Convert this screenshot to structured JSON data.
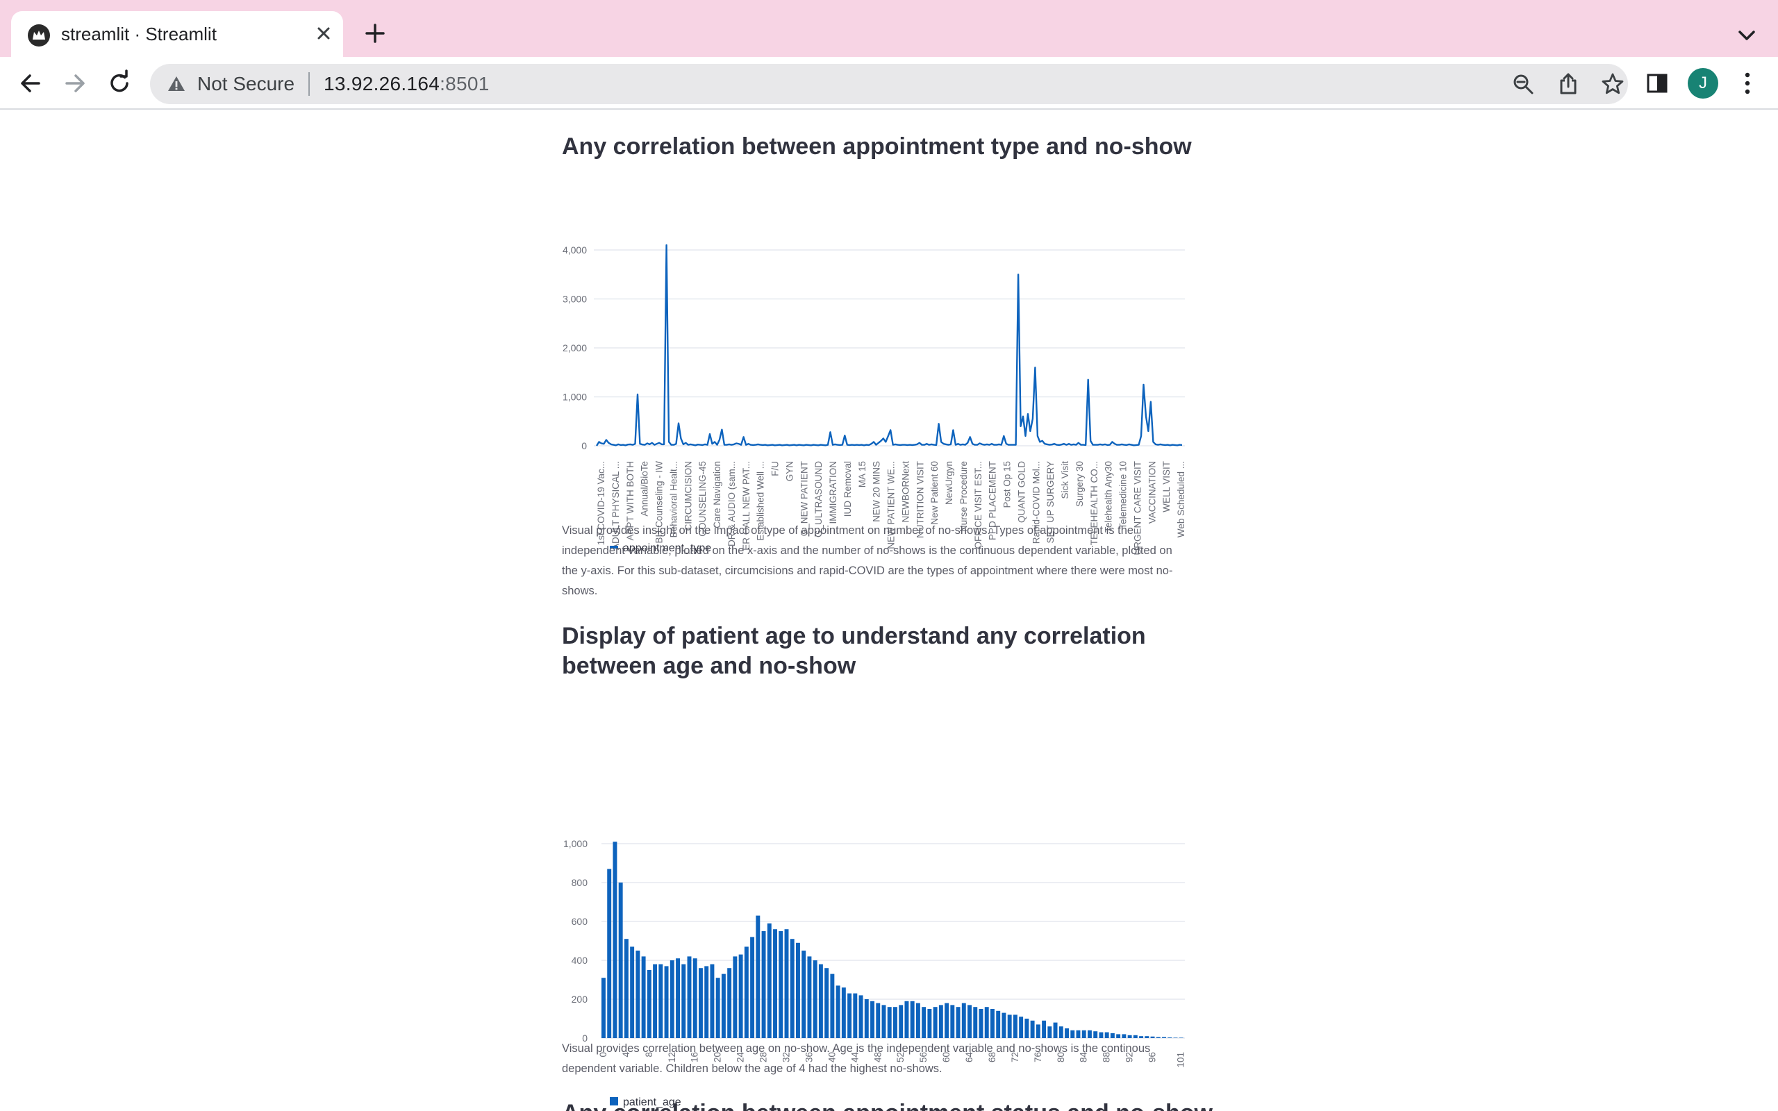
{
  "browser": {
    "tab_title": "streamlit · Streamlit",
    "security_label": "Not Secure",
    "url_host": "13.92.26.164",
    "url_port": ":8501",
    "profile_initial": "J"
  },
  "sections": {
    "appointment": {
      "title": "Any correlation between appointment type and no-show",
      "description": "Visual provides insight on the impact of type of appointment on number of no-shows. Types of appointment is the independent variable, plotted on the x-axis and the number of no-shows is the continuous dependent variable, plotted on the y-axis. For this sub-dataset, circumcisions and rapid-COVID are the types of appointment where there were most no-shows."
    },
    "age": {
      "title": "Display of patient age to understand any correlation between age and no-show",
      "description": "Visual provides correlation between age on no-show. Age is the independent variable and no-shows is the continous dependent variable. Children below the age of 4 had the highest no-shows."
    },
    "next_heading_partial": "Any correlation between appointment status and no-show"
  },
  "colors": {
    "series": "#0d63bd",
    "heading": "#31333f",
    "grid": "#e6e9ef",
    "axis_text": "#6b6e78"
  },
  "chart_data": [
    {
      "type": "line",
      "title": "",
      "xlabel": "",
      "ylabel": "",
      "ylim": [
        0,
        4000
      ],
      "yticks": [
        "4,000",
        "3,000",
        "2,000",
        "1,000",
        "0"
      ],
      "legend": "appointment_type",
      "legend_position": "bottom-left",
      "grid": true,
      "tick_labels": [
        "1st COVID-19 Vac...",
        "ADULT PHYSICAL ...",
        "APPT WITH BOTH",
        "Annual/BioTe",
        "BH Counseling - IW",
        "Behavioral Healt...",
        "CIRCUMCISION",
        "COUNSELING-45",
        "Care Navigation",
        "DR & AUDIO (sam...",
        "ER CALL NEW PAT...",
        "Established Well ...",
        "F/U",
        "GYN",
        "G_NEW PATIENT",
        "G_ULTRASOUND",
        "IMMIGRATION",
        "IUD Removal",
        "MA 15",
        "NEW 20 MINS",
        "NEW PATIENT WE...",
        "NEWBORNext",
        "NUTRITION VISIT",
        "New Patient 60",
        "NewUrgyn",
        "Nurse Procedure",
        "OFFICE VISIT EST...",
        "PPD PLACEMENT",
        "Post Op 15",
        "QUANT GOLD",
        "Rapid-COVID Mol...",
        "SET UP SURGERY",
        "Sick Visit",
        "Surgery 30",
        "TELEHEALTH CO...",
        "Telehealth Any30",
        "Telemedicine 10",
        "URGENT CARE VISIT",
        "VACCINATION",
        "WELL VISIT",
        "Web Scheduled ..."
      ],
      "values": [
        0,
        80,
        50,
        40,
        120,
        60,
        30,
        20,
        10,
        30,
        15,
        20,
        10,
        25,
        30,
        20,
        40,
        1050,
        40,
        25,
        20,
        50,
        30,
        60,
        20,
        40,
        60,
        30,
        30,
        4100,
        80,
        20,
        20,
        40,
        460,
        150,
        30,
        60,
        20,
        30,
        20,
        10,
        25,
        20,
        15,
        30,
        20,
        240,
        40,
        80,
        20,
        120,
        330,
        20,
        20,
        30,
        20,
        30,
        50,
        40,
        20,
        180,
        20,
        40,
        20,
        15,
        20,
        30,
        20,
        15,
        20,
        10,
        15,
        20,
        10,
        15,
        20,
        10,
        15,
        20,
        10,
        15,
        20,
        10,
        20,
        15,
        10,
        20,
        15,
        10,
        20,
        15,
        10,
        20,
        15,
        10,
        20,
        280,
        20,
        30,
        20,
        15,
        20,
        210,
        20,
        15,
        20,
        15,
        20,
        15,
        20,
        10,
        20,
        15,
        40,
        80,
        20,
        60,
        100,
        150,
        80,
        200,
        320,
        20,
        30,
        20,
        15,
        20,
        20,
        15,
        20,
        15,
        20,
        30,
        60,
        20,
        20,
        40,
        20,
        30,
        20,
        15,
        450,
        80,
        40,
        30,
        20,
        30,
        320,
        20,
        40,
        20,
        30,
        20,
        60,
        180,
        40,
        20,
        20,
        50,
        30,
        20,
        30,
        20,
        40,
        20,
        20,
        30,
        20,
        200,
        40,
        20,
        20,
        20,
        20,
        3500,
        400,
        600,
        200,
        650,
        300,
        550,
        1600,
        200,
        80,
        100,
        40,
        30,
        20,
        25,
        40,
        20,
        15,
        25,
        40,
        20,
        40,
        20,
        30,
        20,
        60,
        20,
        20,
        15,
        1350,
        100,
        20,
        20,
        20,
        30,
        20,
        30,
        15,
        20,
        80,
        40,
        20,
        20,
        30,
        20,
        15,
        30,
        20,
        10,
        15,
        20,
        200,
        1250,
        600,
        300,
        900,
        80,
        30,
        20,
        30,
        20,
        15,
        20,
        10,
        20,
        15,
        10,
        20,
        15
      ]
    },
    {
      "type": "bar",
      "title": "",
      "xlabel": "",
      "ylabel": "",
      "ylim": [
        0,
        1000
      ],
      "yticks": [
        "1,000",
        "800",
        "600",
        "400",
        "200",
        "0"
      ],
      "legend": "patient_age",
      "legend_position": "bottom-left",
      "grid": true,
      "x_tick_labels": [
        "0",
        "4",
        "8",
        "12",
        "16",
        "20",
        "24",
        "28",
        "32",
        "36",
        "40",
        "44",
        "48",
        "52",
        "56",
        "60",
        "64",
        "68",
        "72",
        "76",
        "80",
        "84",
        "88",
        "92",
        "96",
        "101"
      ],
      "x": [
        0,
        1,
        2,
        3,
        4,
        5,
        6,
        7,
        8,
        9,
        10,
        11,
        12,
        13,
        14,
        15,
        16,
        17,
        18,
        19,
        20,
        21,
        22,
        23,
        24,
        25,
        26,
        27,
        28,
        29,
        30,
        31,
        32,
        33,
        34,
        35,
        36,
        37,
        38,
        39,
        40,
        41,
        42,
        43,
        44,
        45,
        46,
        47,
        48,
        49,
        50,
        51,
        52,
        53,
        54,
        55,
        56,
        57,
        58,
        59,
        60,
        61,
        62,
        63,
        64,
        65,
        66,
        67,
        68,
        69,
        70,
        71,
        72,
        73,
        74,
        75,
        76,
        77,
        78,
        79,
        80,
        81,
        82,
        83,
        84,
        85,
        86,
        87,
        88,
        89,
        90,
        91,
        92,
        93,
        94,
        95,
        96,
        97,
        98,
        99,
        100,
        101
      ],
      "values": [
        310,
        870,
        1010,
        800,
        510,
        470,
        450,
        420,
        350,
        380,
        380,
        370,
        400,
        410,
        380,
        420,
        410,
        360,
        370,
        380,
        310,
        330,
        360,
        420,
        430,
        470,
        520,
        630,
        550,
        590,
        560,
        550,
        560,
        510,
        490,
        450,
        420,
        400,
        380,
        360,
        330,
        270,
        260,
        230,
        230,
        220,
        200,
        190,
        180,
        170,
        160,
        160,
        170,
        190,
        190,
        180,
        160,
        150,
        160,
        170,
        180,
        170,
        160,
        180,
        170,
        160,
        150,
        160,
        150,
        140,
        130,
        120,
        120,
        110,
        100,
        90,
        70,
        90,
        60,
        80,
        60,
        50,
        40,
        40,
        40,
        40,
        35,
        30,
        30,
        25,
        20,
        20,
        15,
        15,
        10,
        10,
        8,
        5,
        5,
        3,
        2,
        2
      ]
    }
  ]
}
